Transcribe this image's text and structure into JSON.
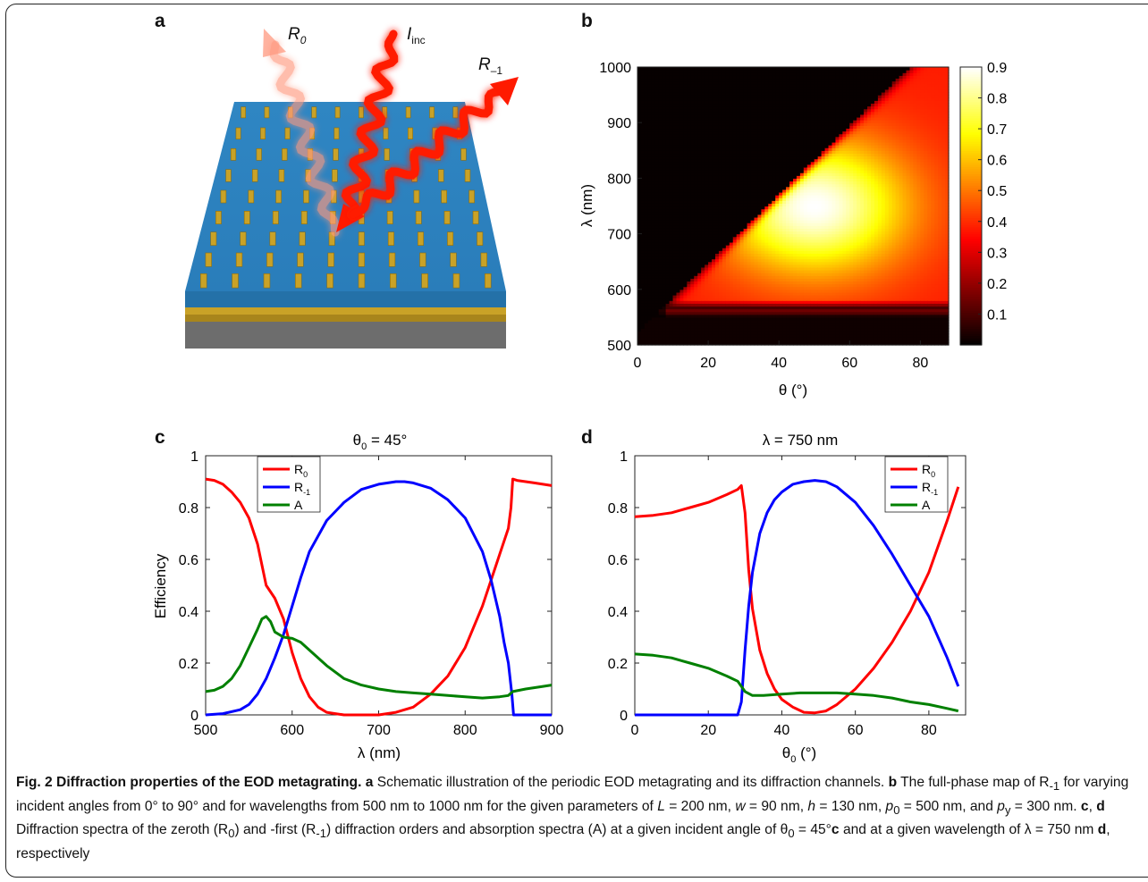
{
  "panels": {
    "a": {
      "letter": "a",
      "labels": {
        "r0": "R",
        "r0_sub": "0",
        "inc": "I",
        "inc_sub": "inc",
        "rm1": "R",
        "rm1_sub": "–1"
      },
      "colors": {
        "top": "#2f86c3",
        "side_left": "#2471a8",
        "side_right": "#1e6296",
        "gold": "#c9a227",
        "substrate": "#6d6d6d",
        "ray": "#ff1a00"
      }
    },
    "b": {
      "letter": "b",
      "xlabel": "θ (°)",
      "ylabel": "λ (nm)",
      "xticks": [
        "0",
        "20",
        "40",
        "60",
        "80"
      ],
      "yticks": [
        "500",
        "600",
        "700",
        "800",
        "900",
        "1000"
      ],
      "colorbar_ticks": [
        "0.1",
        "0.2",
        "0.3",
        "0.4",
        "0.5",
        "0.6",
        "0.7",
        "0.8",
        "0.9"
      ]
    },
    "c": {
      "letter": "c",
      "title": "θ",
      "title_sub": "0",
      "title_rest": " = 45°",
      "xlabel": "λ (nm)",
      "ylabel": "Efficiency",
      "xticks": [
        "500",
        "600",
        "700",
        "800",
        "900"
      ],
      "yticks": [
        "0",
        "0.2",
        "0.4",
        "0.6",
        "0.8",
        "1"
      ]
    },
    "d": {
      "letter": "d",
      "title": "λ = 750 nm",
      "xlabel": "θ",
      "xlabel_sub": "0",
      "xlabel_rest": " (°)",
      "xticks": [
        "0",
        "20",
        "40",
        "60",
        "80"
      ],
      "yticks": [
        "0",
        "0.2",
        "0.4",
        "0.6",
        "0.8",
        "1"
      ]
    }
  },
  "legend": [
    {
      "name": "R",
      "sub": "0",
      "color": "#ff0000"
    },
    {
      "name": "R",
      "sub": "-1",
      "color": "#0000ff"
    },
    {
      "name": "A",
      "sub": "",
      "color": "#008000"
    }
  ],
  "chart_data": [
    {
      "type": "heatmap",
      "panel": "b",
      "xlabel": "θ (°)",
      "ylabel": "λ (nm)",
      "xlim": [
        0,
        88
      ],
      "ylim": [
        500,
        1000
      ],
      "colorbar_range": [
        0,
        0.9
      ],
      "colormap": "hot",
      "peak": {
        "theta": 50,
        "lambda": 750,
        "value": 0.9
      }
    },
    {
      "type": "line",
      "panel": "c",
      "title": "θ0 = 45°",
      "xlabel": "λ (nm)",
      "ylabel": "Efficiency",
      "xlim": [
        500,
        900
      ],
      "ylim": [
        0,
        1
      ],
      "legend_position": "top-left",
      "series": [
        {
          "name": "R0",
          "color": "#ff0000",
          "x": [
            500,
            510,
            520,
            530,
            540,
            550,
            560,
            570,
            580,
            590,
            600,
            610,
            620,
            630,
            640,
            650,
            660,
            680,
            700,
            720,
            740,
            760,
            780,
            800,
            820,
            840,
            850,
            853,
            855,
            860,
            880,
            900
          ],
          "y": [
            0.91,
            0.905,
            0.89,
            0.86,
            0.82,
            0.76,
            0.66,
            0.5,
            0.45,
            0.37,
            0.24,
            0.14,
            0.07,
            0.03,
            0.01,
            0.005,
            0.0,
            0.0,
            0.0,
            0.01,
            0.03,
            0.08,
            0.15,
            0.26,
            0.42,
            0.62,
            0.72,
            0.8,
            0.91,
            0.905,
            0.895,
            0.885
          ]
        },
        {
          "name": "R-1",
          "color": "#0000ff",
          "x": [
            500,
            520,
            540,
            550,
            560,
            570,
            580,
            590,
            600,
            610,
            620,
            640,
            660,
            680,
            700,
            720,
            730,
            740,
            760,
            780,
            800,
            820,
            830,
            840,
            845,
            850,
            854,
            856,
            860,
            880,
            900
          ],
          "y": [
            0.0,
            0.005,
            0.02,
            0.04,
            0.08,
            0.14,
            0.22,
            0.31,
            0.42,
            0.53,
            0.63,
            0.75,
            0.82,
            0.87,
            0.89,
            0.9,
            0.9,
            0.895,
            0.875,
            0.83,
            0.76,
            0.63,
            0.52,
            0.38,
            0.28,
            0.2,
            0.08,
            0.0,
            0.0,
            0.0,
            0.0
          ]
        },
        {
          "name": "A",
          "color": "#008000",
          "x": [
            500,
            510,
            520,
            530,
            540,
            550,
            560,
            565,
            570,
            575,
            580,
            590,
            600,
            610,
            620,
            640,
            660,
            680,
            700,
            720,
            740,
            760,
            780,
            800,
            820,
            840,
            850,
            855,
            870,
            890,
            900
          ],
          "y": [
            0.09,
            0.095,
            0.11,
            0.14,
            0.19,
            0.26,
            0.33,
            0.37,
            0.38,
            0.36,
            0.32,
            0.3,
            0.295,
            0.28,
            0.25,
            0.19,
            0.14,
            0.115,
            0.1,
            0.09,
            0.085,
            0.08,
            0.075,
            0.07,
            0.065,
            0.07,
            0.075,
            0.09,
            0.1,
            0.11,
            0.115
          ]
        }
      ]
    },
    {
      "type": "line",
      "panel": "d",
      "title": "λ = 750 nm",
      "xlabel": "θ0 (°)",
      "xlim": [
        0,
        90
      ],
      "ylim": [
        0,
        1
      ],
      "legend_position": "top-right",
      "series": [
        {
          "name": "R0",
          "color": "#ff0000",
          "x": [
            0,
            5,
            10,
            15,
            20,
            25,
            28,
            29,
            30,
            31,
            32,
            34,
            36,
            38,
            40,
            43,
            46,
            49,
            52,
            55,
            60,
            65,
            70,
            75,
            80,
            85,
            88
          ],
          "y": [
            0.765,
            0.77,
            0.78,
            0.8,
            0.82,
            0.85,
            0.87,
            0.885,
            0.78,
            0.56,
            0.41,
            0.25,
            0.16,
            0.1,
            0.06,
            0.03,
            0.01,
            0.008,
            0.015,
            0.04,
            0.1,
            0.18,
            0.28,
            0.4,
            0.55,
            0.75,
            0.88
          ]
        },
        {
          "name": "R-1",
          "color": "#0000ff",
          "x": [
            0,
            10,
            20,
            28,
            29,
            30,
            31,
            32,
            34,
            36,
            38,
            40,
            43,
            46,
            49,
            52,
            55,
            60,
            65,
            70,
            75,
            80,
            85,
            88
          ],
          "y": [
            0.0,
            0.0,
            0.0,
            0.0,
            0.05,
            0.25,
            0.42,
            0.55,
            0.7,
            0.78,
            0.83,
            0.86,
            0.89,
            0.9,
            0.905,
            0.9,
            0.88,
            0.82,
            0.73,
            0.62,
            0.5,
            0.38,
            0.22,
            0.11
          ]
        },
        {
          "name": "A",
          "color": "#008000",
          "x": [
            0,
            5,
            10,
            15,
            20,
            25,
            28,
            30,
            32,
            35,
            40,
            45,
            50,
            55,
            60,
            65,
            70,
            75,
            80,
            85,
            88
          ],
          "y": [
            0.235,
            0.23,
            0.22,
            0.2,
            0.18,
            0.15,
            0.13,
            0.09,
            0.075,
            0.075,
            0.08,
            0.085,
            0.085,
            0.085,
            0.08,
            0.075,
            0.065,
            0.05,
            0.04,
            0.025,
            0.015
          ]
        }
      ]
    }
  ],
  "caption": {
    "fig_label": "Fig. 2 Diffraction properties of the EOD metagrating.",
    "a_letter": "a",
    "a_text": " Schematic illustration of the periodic EOD metagrating and its diffraction channels. ",
    "b_letter": "b",
    "b_text": " The full-phase map of R",
    "b_sub": "-1",
    "b_text2": " for varying incident angles from 0° to 90° and for wavelengths from 500 nm to 1000 nm for the given parameters of ",
    "L_sym": "L",
    "L_val": " = 200 nm, ",
    "w_sym": "w",
    "w_val": " = 90 nm, ",
    "h_sym": "h",
    "h_val": " = 130 nm, ",
    "p0_sym": "p",
    "p0_sub": "0",
    "p0_val": " = 500 nm, and ",
    "py_sym": "p",
    "py_sub": "y",
    "py_val": " = 300 nm. ",
    "c_letter": "c",
    "cd_sep": ", ",
    "d_letter": "d",
    "cd_text": " Diffraction spectra of the zeroth (R",
    "cd_sub0": "0",
    "cd_text2": ") and -first (R",
    "cd_sub1": "-1",
    "cd_text3": ") diffraction orders and absorption spectra (A) at a given incident angle of θ",
    "cd_sub2": "0",
    "cd_text4": " = 45°",
    "c_letter2": "c",
    "cd_text5": " and at a given wavelength of λ = 750 nm ",
    "d_letter2": "d",
    "cd_text6": ", respectively"
  }
}
